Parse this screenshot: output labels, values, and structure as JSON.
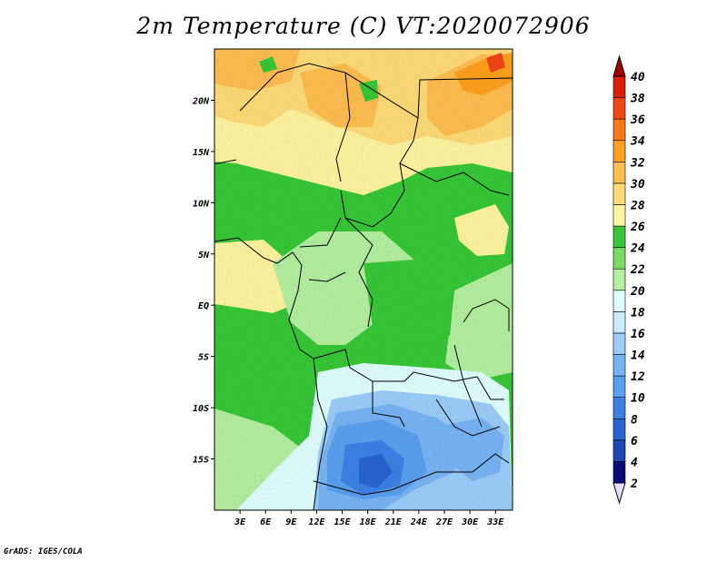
{
  "title": "2m Temperature (C) VT:2020072906",
  "credit": "GrADS: IGES/COLA",
  "map": {
    "lon_range": [
      0,
      35
    ],
    "lat_range": [
      -20,
      25
    ],
    "lat_ticks": [
      {
        "lat": 20,
        "label": "20N"
      },
      {
        "lat": 15,
        "label": "15N"
      },
      {
        "lat": 10,
        "label": "10N"
      },
      {
        "lat": 5,
        "label": "5N"
      },
      {
        "lat": 0,
        "label": "EQ"
      },
      {
        "lat": -5,
        "label": "5S"
      },
      {
        "lat": -10,
        "label": "10S"
      },
      {
        "lat": -15,
        "label": "15S"
      }
    ],
    "lon_ticks": [
      {
        "lon": 3,
        "label": "3E"
      },
      {
        "lon": 6,
        "label": "6E"
      },
      {
        "lon": 9,
        "label": "9E"
      },
      {
        "lon": 12,
        "label": "12E"
      },
      {
        "lon": 15,
        "label": "15E"
      },
      {
        "lon": 18,
        "label": "18E"
      },
      {
        "lon": 21,
        "label": "21E"
      },
      {
        "lon": 24,
        "label": "24E"
      },
      {
        "lon": 27,
        "label": "27E"
      },
      {
        "lon": 30,
        "label": "30E"
      },
      {
        "lon": 33,
        "label": "33E"
      }
    ]
  },
  "colorbar": {
    "levels": [
      {
        "value": "2",
        "color": "#e6dcff"
      },
      {
        "value": "4",
        "color": "#0a0a78"
      },
      {
        "value": "6",
        "color": "#1e46b4"
      },
      {
        "value": "8",
        "color": "#2864d2"
      },
      {
        "value": "10",
        "color": "#3c82e6"
      },
      {
        "value": "12",
        "color": "#5aa0f0"
      },
      {
        "value": "14",
        "color": "#78b4f5"
      },
      {
        "value": "16",
        "color": "#9ccdfa"
      },
      {
        "value": "18",
        "color": "#c8ebff"
      },
      {
        "value": "20",
        "color": "#e1ffff"
      },
      {
        "value": "22",
        "color": "#b4f0a0"
      },
      {
        "value": "24",
        "color": "#78dc64"
      },
      {
        "value": "26",
        "color": "#37c837"
      },
      {
        "value": "28",
        "color": "#fff5a0"
      },
      {
        "value": "30",
        "color": "#ffdc78"
      },
      {
        "value": "32",
        "color": "#ffbe50"
      },
      {
        "value": "34",
        "color": "#ffa01e"
      },
      {
        "value": "36",
        "color": "#ff7814"
      },
      {
        "value": "38",
        "color": "#f04614"
      },
      {
        "value": "40",
        "color": "#dc1e0a"
      }
    ],
    "top_color": "#a00000"
  }
}
